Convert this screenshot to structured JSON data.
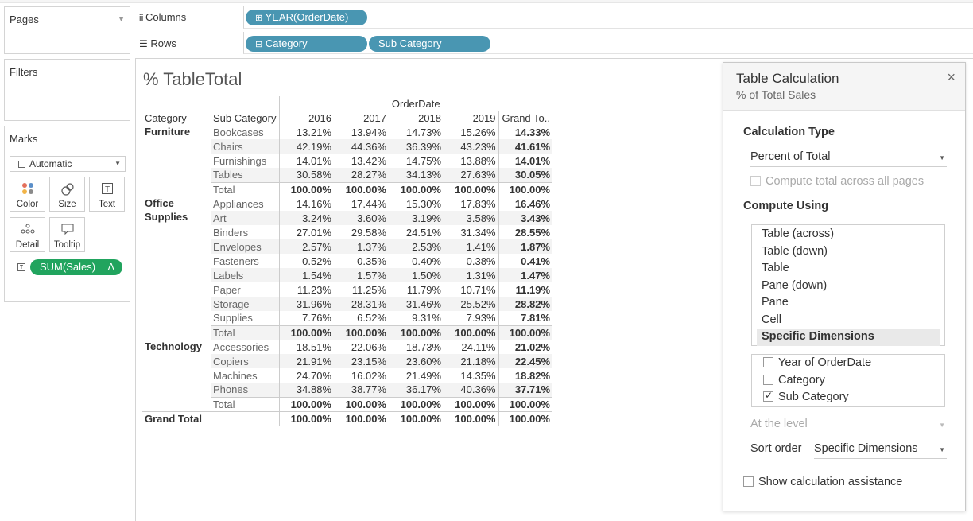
{
  "shelves": {
    "pages_label": "Pages",
    "filters_label": "Filters",
    "marks_label": "Marks",
    "columns_label": "Columns",
    "rows_label": "Rows",
    "columns_pill": "YEAR(OrderDate)",
    "rows_pills": [
      "Category",
      "Sub Category"
    ]
  },
  "marks": {
    "type": "Automatic",
    "buttons": [
      "Color",
      "Size",
      "Text",
      "Detail",
      "Tooltip"
    ],
    "field_pill": "SUM(Sales)",
    "field_delta": "Δ"
  },
  "viz": {
    "title": "% TableTotal",
    "header_group": "OrderDate",
    "headers": [
      "Category",
      "Sub Category",
      "2016",
      "2017",
      "2018",
      "2019",
      "Grand To.."
    ],
    "grand_total_label": "Grand Total",
    "total_label": "Total",
    "categories": [
      {
        "name": "Furniture",
        "rows": [
          {
            "sub": "Bookcases",
            "v": [
              "13.21%",
              "13.94%",
              "14.73%",
              "15.26%",
              "14.33%"
            ]
          },
          {
            "sub": "Chairs",
            "v": [
              "42.19%",
              "44.36%",
              "36.39%",
              "43.23%",
              "41.61%"
            ]
          },
          {
            "sub": "Furnishings",
            "v": [
              "14.01%",
              "13.42%",
              "14.75%",
              "13.88%",
              "14.01%"
            ]
          },
          {
            "sub": "Tables",
            "v": [
              "30.58%",
              "28.27%",
              "34.13%",
              "27.63%",
              "30.05%"
            ]
          }
        ],
        "total": [
          "100.00%",
          "100.00%",
          "100.00%",
          "100.00%",
          "100.00%"
        ]
      },
      {
        "name": "Office",
        "name2": "Supplies",
        "rows": [
          {
            "sub": "Appliances",
            "v": [
              "14.16%",
              "17.44%",
              "15.30%",
              "17.83%",
              "16.46%"
            ]
          },
          {
            "sub": "Art",
            "v": [
              "3.24%",
              "3.60%",
              "3.19%",
              "3.58%",
              "3.43%"
            ]
          },
          {
            "sub": "Binders",
            "v": [
              "27.01%",
              "29.58%",
              "24.51%",
              "31.34%",
              "28.55%"
            ]
          },
          {
            "sub": "Envelopes",
            "v": [
              "2.57%",
              "1.37%",
              "2.53%",
              "1.41%",
              "1.87%"
            ]
          },
          {
            "sub": "Fasteners",
            "v": [
              "0.52%",
              "0.35%",
              "0.40%",
              "0.38%",
              "0.41%"
            ]
          },
          {
            "sub": "Labels",
            "v": [
              "1.54%",
              "1.57%",
              "1.50%",
              "1.31%",
              "1.47%"
            ]
          },
          {
            "sub": "Paper",
            "v": [
              "11.23%",
              "11.25%",
              "11.79%",
              "10.71%",
              "11.19%"
            ]
          },
          {
            "sub": "Storage",
            "v": [
              "31.96%",
              "28.31%",
              "31.46%",
              "25.52%",
              "28.82%"
            ]
          },
          {
            "sub": "Supplies",
            "v": [
              "7.76%",
              "6.52%",
              "9.31%",
              "7.93%",
              "7.81%"
            ]
          }
        ],
        "total": [
          "100.00%",
          "100.00%",
          "100.00%",
          "100.00%",
          "100.00%"
        ]
      },
      {
        "name": "Technology",
        "rows": [
          {
            "sub": "Accessories",
            "v": [
              "18.51%",
              "22.06%",
              "18.73%",
              "24.11%",
              "21.02%"
            ]
          },
          {
            "sub": "Copiers",
            "v": [
              "21.91%",
              "23.15%",
              "23.60%",
              "21.18%",
              "22.45%"
            ]
          },
          {
            "sub": "Machines",
            "v": [
              "24.70%",
              "16.02%",
              "21.49%",
              "14.35%",
              "18.82%"
            ]
          },
          {
            "sub": "Phones",
            "v": [
              "34.88%",
              "38.77%",
              "36.17%",
              "40.36%",
              "37.71%"
            ]
          }
        ],
        "total": [
          "100.00%",
          "100.00%",
          "100.00%",
          "100.00%",
          "100.00%"
        ]
      }
    ],
    "grand_total": [
      "100.00%",
      "100.00%",
      "100.00%",
      "100.00%",
      "100.00%"
    ]
  },
  "dialog": {
    "title": "Table Calculation",
    "subtitle": "% of Total Sales",
    "close": "×",
    "calc_type_label": "Calculation Type",
    "calc_type_value": "Percent of Total",
    "compute_all_pages": "Compute total across all pages",
    "compute_using_label": "Compute Using",
    "compute_options": [
      "Table (across)",
      "Table (down)",
      "Table",
      "Pane (down)",
      "Pane",
      "Cell",
      "Specific Dimensions"
    ],
    "dimensions": [
      {
        "label": "Year of OrderDate",
        "checked": false
      },
      {
        "label": "Category",
        "checked": false
      },
      {
        "label": "Sub Category",
        "checked": true
      }
    ],
    "at_level_label": "At the level",
    "at_level_value": "",
    "sort_order_label": "Sort order",
    "sort_order_value": "Specific Dimensions",
    "show_assist": "Show calculation assistance"
  }
}
